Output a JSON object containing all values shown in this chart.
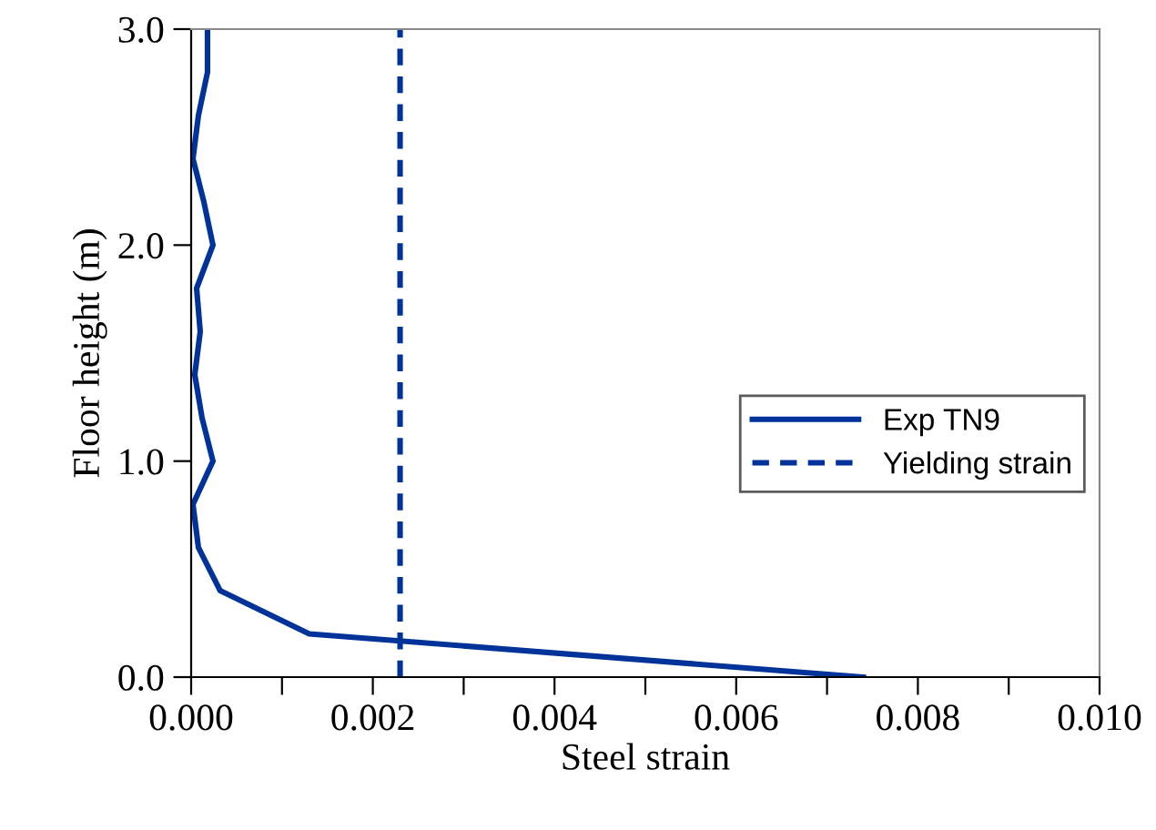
{
  "chart_data": {
    "type": "line",
    "xlabel": "Steel strain",
    "ylabel": "Floor height (m)",
    "xlim": [
      0,
      0.01
    ],
    "ylim": [
      0,
      3
    ],
    "xticks": [
      {
        "value": 0,
        "label": "0.000"
      },
      {
        "value": 0.001,
        "label": null
      },
      {
        "value": 0.002,
        "label": "0.002"
      },
      {
        "value": 0.003,
        "label": null
      },
      {
        "value": 0.004,
        "label": "0.004"
      },
      {
        "value": 0.005,
        "label": null
      },
      {
        "value": 0.006,
        "label": "0.006"
      },
      {
        "value": 0.007,
        "label": null
      },
      {
        "value": 0.008,
        "label": "0.008"
      },
      {
        "value": 0.009,
        "label": null
      },
      {
        "value": 0.01,
        "label": "0.010"
      }
    ],
    "yticks": [
      {
        "value": 0,
        "label": "0.0"
      },
      {
        "value": 1,
        "label": "1.0"
      },
      {
        "value": 2,
        "label": "2.0"
      },
      {
        "value": 3,
        "label": "3.0"
      }
    ],
    "grid": false,
    "legend": "right",
    "marker": "none",
    "series": [
      {
        "name": "Exp TN9",
        "color": "#003399",
        "line_style": "solid",
        "x": [
          0.0074,
          0.0013,
          0.00032,
          8e-05,
          2e-05,
          0.00024,
          0.00012,
          4e-05,
          0.0001,
          6e-05,
          0.00024,
          0.00014,
          2e-05,
          8e-05,
          0.00018,
          0.00018
        ],
        "values": [
          0,
          0.2,
          0.4,
          0.6,
          0.8,
          1.0,
          1.2,
          1.4,
          1.6,
          1.8,
          2.0,
          2.2,
          2.4,
          2.6,
          2.8,
          3.0
        ]
      },
      {
        "name": "Yielding strain",
        "color": "#003399",
        "line_style": "dashed",
        "x": [
          0.0023,
          0.0023
        ],
        "values": [
          0,
          3
        ]
      }
    ]
  }
}
